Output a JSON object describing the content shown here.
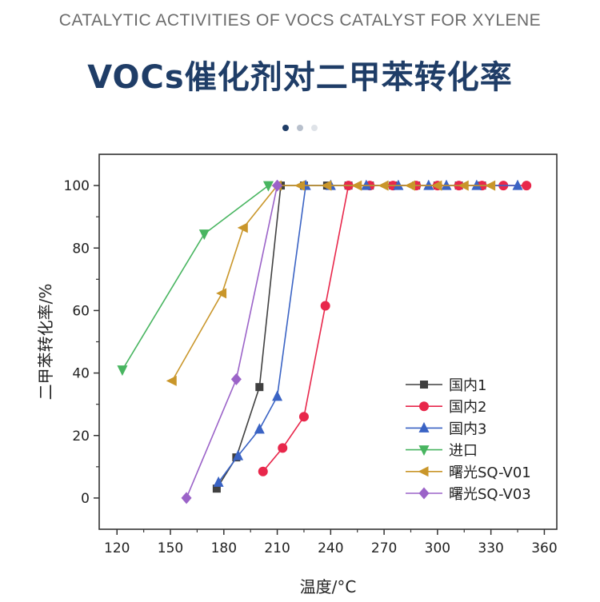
{
  "header": {
    "subtitle": "CATALYTIC ACTIVITIES OF VOCS CATALYST FOR XYLENE",
    "title": "VOCs催化剂对二甲苯转化率",
    "pager": {
      "count": 3,
      "active": 0,
      "colors": [
        "#1f3d67",
        "#b8c0cc",
        "#dfe3e8"
      ]
    }
  },
  "chart_data": {
    "type": "line",
    "xlabel": "温度/°C",
    "ylabel": "二甲苯转化率/%",
    "xlim": [
      110,
      367
    ],
    "ylim": [
      -10,
      110
    ],
    "xticks": [
      120,
      150,
      180,
      210,
      240,
      270,
      300,
      330,
      360
    ],
    "yticks": [
      0,
      20,
      40,
      60,
      80,
      100
    ],
    "legend_position": "bottom-right",
    "series": [
      {
        "name": "国内1",
        "color": "#404040",
        "marker": "square",
        "x": [
          176,
          187,
          200,
          212,
          225,
          238,
          250,
          262,
          275,
          288,
          300,
          312,
          325
        ],
        "y": [
          3,
          13,
          35.5,
          100,
          100,
          100,
          100,
          100,
          100,
          100,
          100,
          100,
          100
        ]
      },
      {
        "name": "国内2",
        "color": "#e8274b",
        "marker": "circle",
        "x": [
          202,
          213,
          225,
          237,
          250,
          262,
          275,
          288,
          300,
          312,
          325,
          337,
          350
        ],
        "y": [
          8.5,
          16,
          26,
          61.5,
          100,
          100,
          100,
          100,
          100,
          100,
          100,
          100,
          100
        ]
      },
      {
        "name": "国内3",
        "color": "#3a63c4",
        "marker": "triangle-up",
        "x": [
          177,
          188,
          200,
          210,
          226,
          240,
          260,
          278,
          295,
          305,
          322,
          345
        ],
        "y": [
          5,
          13.5,
          22,
          32.5,
          100,
          100,
          100,
          100,
          100,
          100,
          100,
          100
        ]
      },
      {
        "name": "进口",
        "color": "#48b560",
        "marker": "triangle-down",
        "x": [
          123,
          169,
          205
        ],
        "y": [
          41,
          84.5,
          100
        ]
      },
      {
        "name": "曙光SQ-V01",
        "color": "#c9962a",
        "marker": "triangle-left",
        "x": [
          151,
          179,
          191,
          210,
          223,
          238,
          255,
          270,
          285,
          300,
          315,
          330
        ],
        "y": [
          37.5,
          65.5,
          86.5,
          100,
          100,
          100,
          100,
          100,
          100,
          100,
          100,
          100
        ]
      },
      {
        "name": "曙光SQ-V03",
        "color": "#9b63c8",
        "marker": "diamond",
        "x": [
          159,
          187,
          210
        ],
        "y": [
          0,
          38,
          100
        ]
      }
    ]
  }
}
